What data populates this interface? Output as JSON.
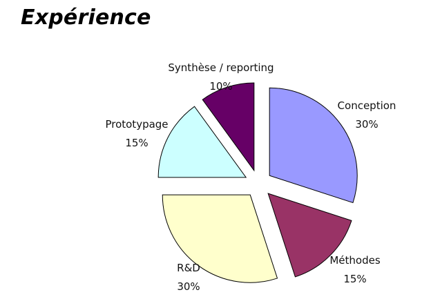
{
  "title": "Expérience",
  "chart_data": {
    "type": "pie",
    "title": "Expérience",
    "exploded": true,
    "slices": [
      {
        "label": "Conception",
        "value": 30,
        "value_label": "30%",
        "color": "#9999ff"
      },
      {
        "label": "Méthodes",
        "value": 15,
        "value_label": "15%",
        "color": "#993366"
      },
      {
        "label": "R&D",
        "value": 30,
        "value_label": "30%",
        "color": "#ffffcc"
      },
      {
        "label": "Prototypage",
        "value": 15,
        "value_label": "15%",
        "color": "#ccffff"
      },
      {
        "label": "Synthèse / reporting",
        "value": 10,
        "value_label": "10%",
        "color": "#660066"
      }
    ]
  }
}
